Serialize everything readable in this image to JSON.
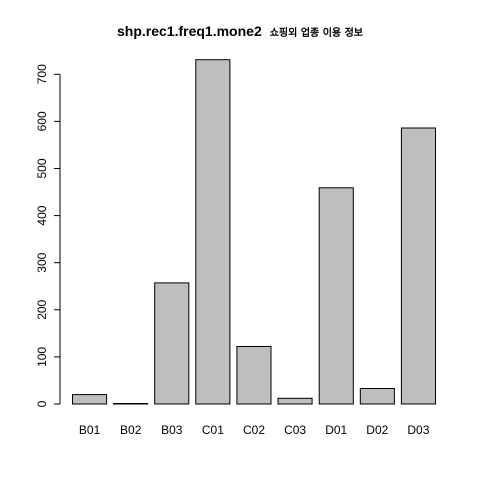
{
  "chart_data": {
    "type": "bar",
    "title": "shp.rec1.freq1.mone2",
    "subtitle": "쇼핑외 업종 이용 정보",
    "xlabel": "",
    "ylabel": "",
    "categories": [
      "B01",
      "B02",
      "B03",
      "C01",
      "C02",
      "C03",
      "D01",
      "D02",
      "D03"
    ],
    "values": [
      20,
      1,
      257,
      731,
      122,
      12,
      459,
      33,
      586
    ],
    "ylim": [
      0,
      760
    ],
    "yticks": [
      0,
      100,
      200,
      300,
      400,
      500,
      600,
      700
    ],
    "grid": false,
    "legend": "none",
    "colors": {
      "bar_fill": "#bebebe",
      "bar_stroke": "#000000"
    }
  }
}
